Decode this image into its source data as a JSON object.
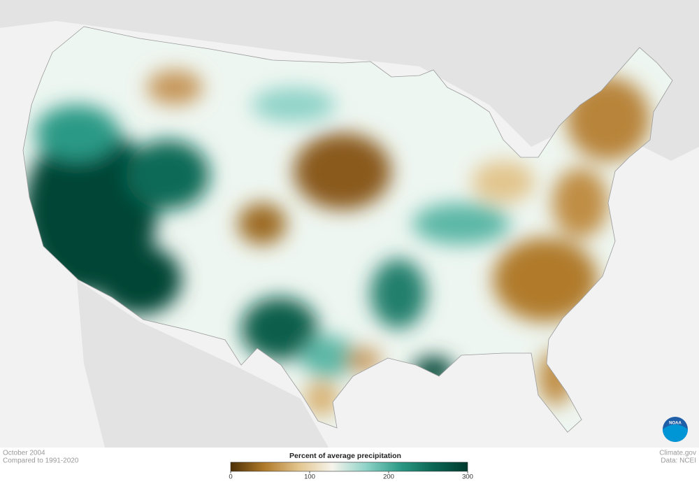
{
  "caption": {
    "date": "October 2004",
    "baseline": "Compared to 1991-2020"
  },
  "legend": {
    "title": "Percent of average precipitation",
    "range": [
      0,
      300
    ],
    "ticks": [
      0,
      100,
      200,
      300
    ],
    "colors": [
      "#4d3006",
      "#b07a2a",
      "#e2c58d",
      "#f6f4ec",
      "#8fd3c8",
      "#2c9a86",
      "#0b6552",
      "#003a2e"
    ]
  },
  "credit": {
    "site": "Climate.gov",
    "source": "Data: NCEI"
  },
  "logo": "NOAA"
}
